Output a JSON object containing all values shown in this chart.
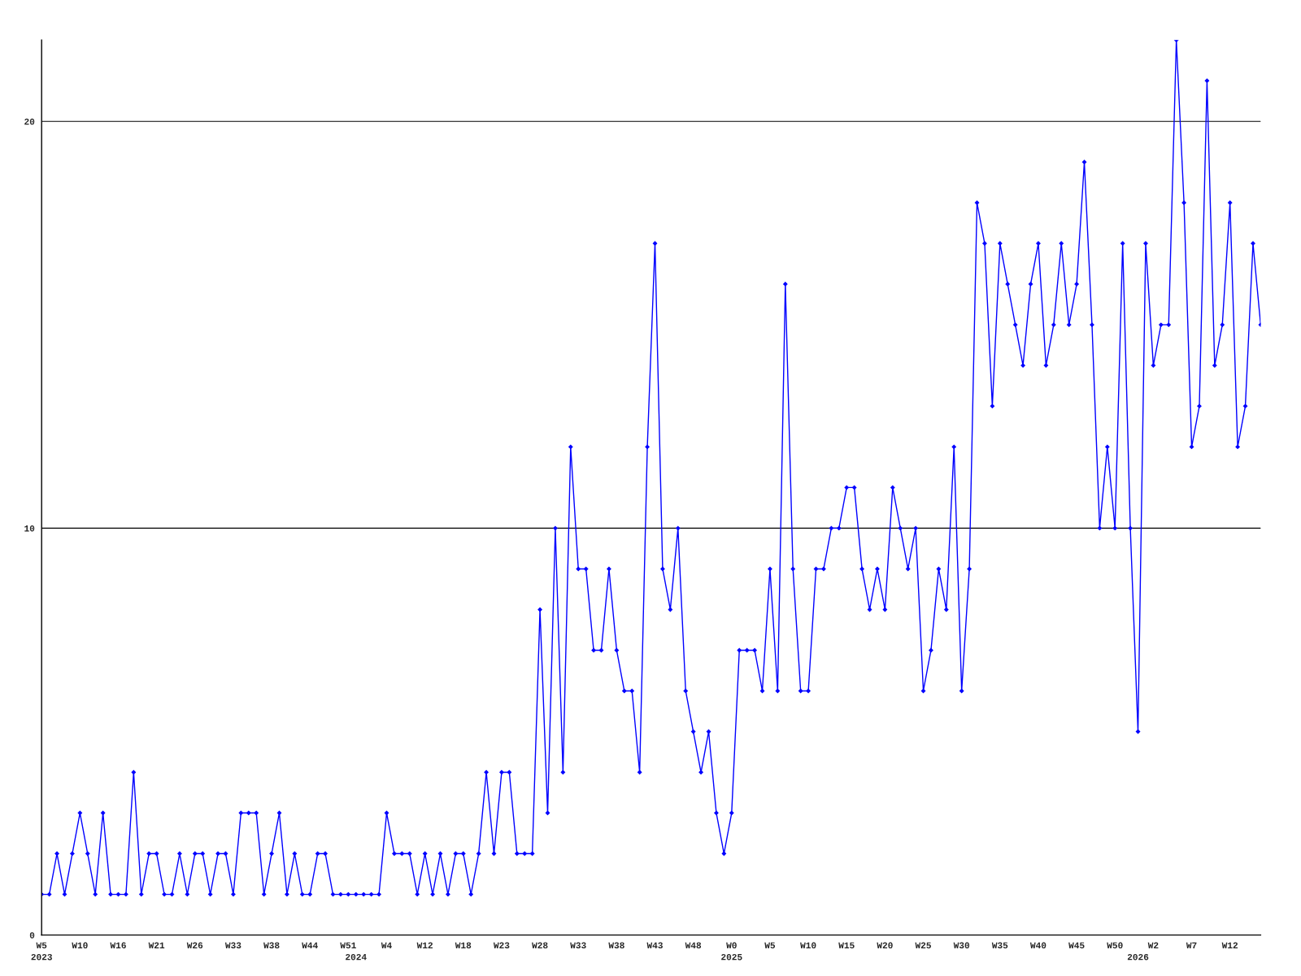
{
  "chart_data": {
    "type": "line",
    "categories": [
      "W5\n2023",
      null,
      null,
      null,
      null,
      "W10",
      null,
      null,
      null,
      null,
      "W16",
      null,
      null,
      null,
      null,
      "W21",
      null,
      null,
      null,
      null,
      "W26",
      null,
      null,
      null,
      null,
      "W33",
      null,
      null,
      null,
      null,
      "W38",
      null,
      null,
      null,
      null,
      "W44",
      null,
      null,
      null,
      null,
      "W51",
      "\n2024",
      null,
      null,
      null,
      "W4",
      null,
      null,
      null,
      null,
      "W12",
      null,
      null,
      null,
      null,
      "W18",
      null,
      null,
      null,
      null,
      "W23",
      null,
      null,
      null,
      null,
      "W28",
      null,
      null,
      null,
      null,
      "W33",
      null,
      null,
      null,
      null,
      "W38",
      null,
      null,
      null,
      null,
      "W43",
      null,
      null,
      null,
      null,
      "W48",
      null,
      null,
      null,
      null,
      "W0\n2025",
      null,
      null,
      null,
      null,
      "W5",
      null,
      null,
      null,
      null,
      "W10",
      null,
      null,
      null,
      null,
      "W15",
      null,
      null,
      null,
      null,
      "W20",
      null,
      null,
      null,
      null,
      "W25",
      null,
      null,
      null,
      null,
      "W30",
      null,
      null,
      null,
      null,
      "W35",
      null,
      null,
      null,
      null,
      "W40",
      null,
      null,
      null,
      null,
      "W45",
      null,
      null,
      null,
      null,
      "W50",
      null,
      null,
      "\n2026",
      null,
      "W2",
      null,
      null,
      null,
      null,
      "W7",
      null,
      null,
      null,
      null,
      "W12",
      null,
      null,
      null,
      null
    ],
    "series": [
      {
        "color": "#0000ff",
        "values": [
          1,
          1,
          2,
          1,
          2,
          3,
          2,
          1,
          3,
          1,
          1,
          1,
          4,
          1,
          2,
          2,
          1,
          1,
          2,
          1,
          2,
          2,
          1,
          2,
          2,
          1,
          3,
          3,
          3,
          1,
          2,
          3,
          1,
          2,
          1,
          1,
          2,
          2,
          1,
          1,
          1,
          1,
          1,
          1,
          1,
          3,
          2,
          2,
          2,
          1,
          2,
          1,
          2,
          1,
          2,
          2,
          1,
          2,
          4,
          2,
          4,
          4,
          2,
          2,
          2,
          8,
          3,
          10,
          4,
          12,
          9,
          9,
          7,
          7,
          9,
          7,
          6,
          6,
          4,
          12,
          17,
          9,
          8,
          10,
          6,
          5,
          4,
          5,
          3,
          2,
          3,
          7,
          7,
          7,
          6,
          9,
          6,
          16,
          9,
          6,
          6,
          9,
          9,
          10,
          10,
          11,
          11,
          9,
          8,
          9,
          8,
          11,
          10,
          9,
          10,
          6,
          7,
          9,
          8,
          12,
          6,
          9,
          18,
          17,
          13,
          17,
          16,
          15,
          14,
          16,
          17,
          14,
          15,
          17,
          15,
          16,
          19,
          15,
          10,
          12,
          10,
          17,
          10,
          5,
          17,
          14,
          15,
          15,
          22,
          18,
          12,
          13,
          21,
          14,
          15,
          18,
          12,
          13,
          17,
          15
        ]
      }
    ],
    "ylim": [
      0,
      22
    ],
    "yticks": [
      0,
      10,
      20
    ],
    "grid": "y",
    "marker": "diamond",
    "line_style": "solid"
  }
}
